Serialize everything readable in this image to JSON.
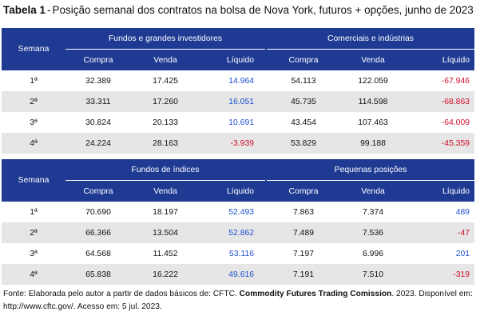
{
  "title": {
    "label": "Tabela 1",
    "separator": "-",
    "text": "Posição semanal dos contratos na bolsa de Nova York, futuros + opções, junho de 2023"
  },
  "row_header": "Semana",
  "sub_headers": {
    "compra": "Compra",
    "venda": "Venda",
    "liquido": "Líquido"
  },
  "colors": {
    "header_bg": "#1f3a93",
    "positive": "#1f4fd0",
    "negative": "#d0102a",
    "zebra": "#e6e6e6"
  },
  "sections": [
    {
      "group_left": "Fundos e grandes investidores",
      "group_right": "Comerciais e indústrias",
      "rows": [
        {
          "week": "1ª",
          "l_compra": "32.389",
          "l_venda": "17.425",
          "l_liq": "14.964",
          "r_compra": "54.113",
          "r_venda": "122.059",
          "r_liq": "-67.946"
        },
        {
          "week": "2ª",
          "l_compra": "33.311",
          "l_venda": "17.260",
          "l_liq": "16.051",
          "r_compra": "45.735",
          "r_venda": "114.598",
          "r_liq": "-68.863"
        },
        {
          "week": "3ª",
          "l_compra": "30.824",
          "l_venda": "20.133",
          "l_liq": "10.691",
          "r_compra": "43.454",
          "r_venda": "107.463",
          "r_liq": "-64.009"
        },
        {
          "week": "4ª",
          "l_compra": "24.224",
          "l_venda": "28.163",
          "l_liq": "-3.939",
          "r_compra": "53.829",
          "r_venda": "99.188",
          "r_liq": "-45.359"
        }
      ]
    },
    {
      "group_left": "Fundos de índices",
      "group_right": "Pequenas posições",
      "rows": [
        {
          "week": "1ª",
          "l_compra": "70.690",
          "l_venda": "18.197",
          "l_liq": "52.493",
          "r_compra": "7.863",
          "r_venda": "7.374",
          "r_liq": "489"
        },
        {
          "week": "2ª",
          "l_compra": "66.366",
          "l_venda": "13.504",
          "l_liq": "52.862",
          "r_compra": "7.489",
          "r_venda": "7.536",
          "r_liq": "-47"
        },
        {
          "week": "3ª",
          "l_compra": "64.568",
          "l_venda": "11.452",
          "l_liq": "53.116",
          "r_compra": "7.197",
          "r_venda": "6.996",
          "r_liq": "201"
        },
        {
          "week": "4ª",
          "l_compra": "65.838",
          "l_venda": "16.222",
          "l_liq": "49.616",
          "r_compra": "7.191",
          "r_venda": "7.510",
          "r_liq": "-319"
        }
      ]
    }
  ],
  "note": {
    "prefix": "Fonte: Elaborada pelo autor a partir de dados básicos de: CFTC.",
    "bold": "Commodity Futures Trading Comission",
    "suffix": ". 2023. Disponível em: http://www.cftc.gov/. Acesso em: 5 jul. 2023."
  }
}
